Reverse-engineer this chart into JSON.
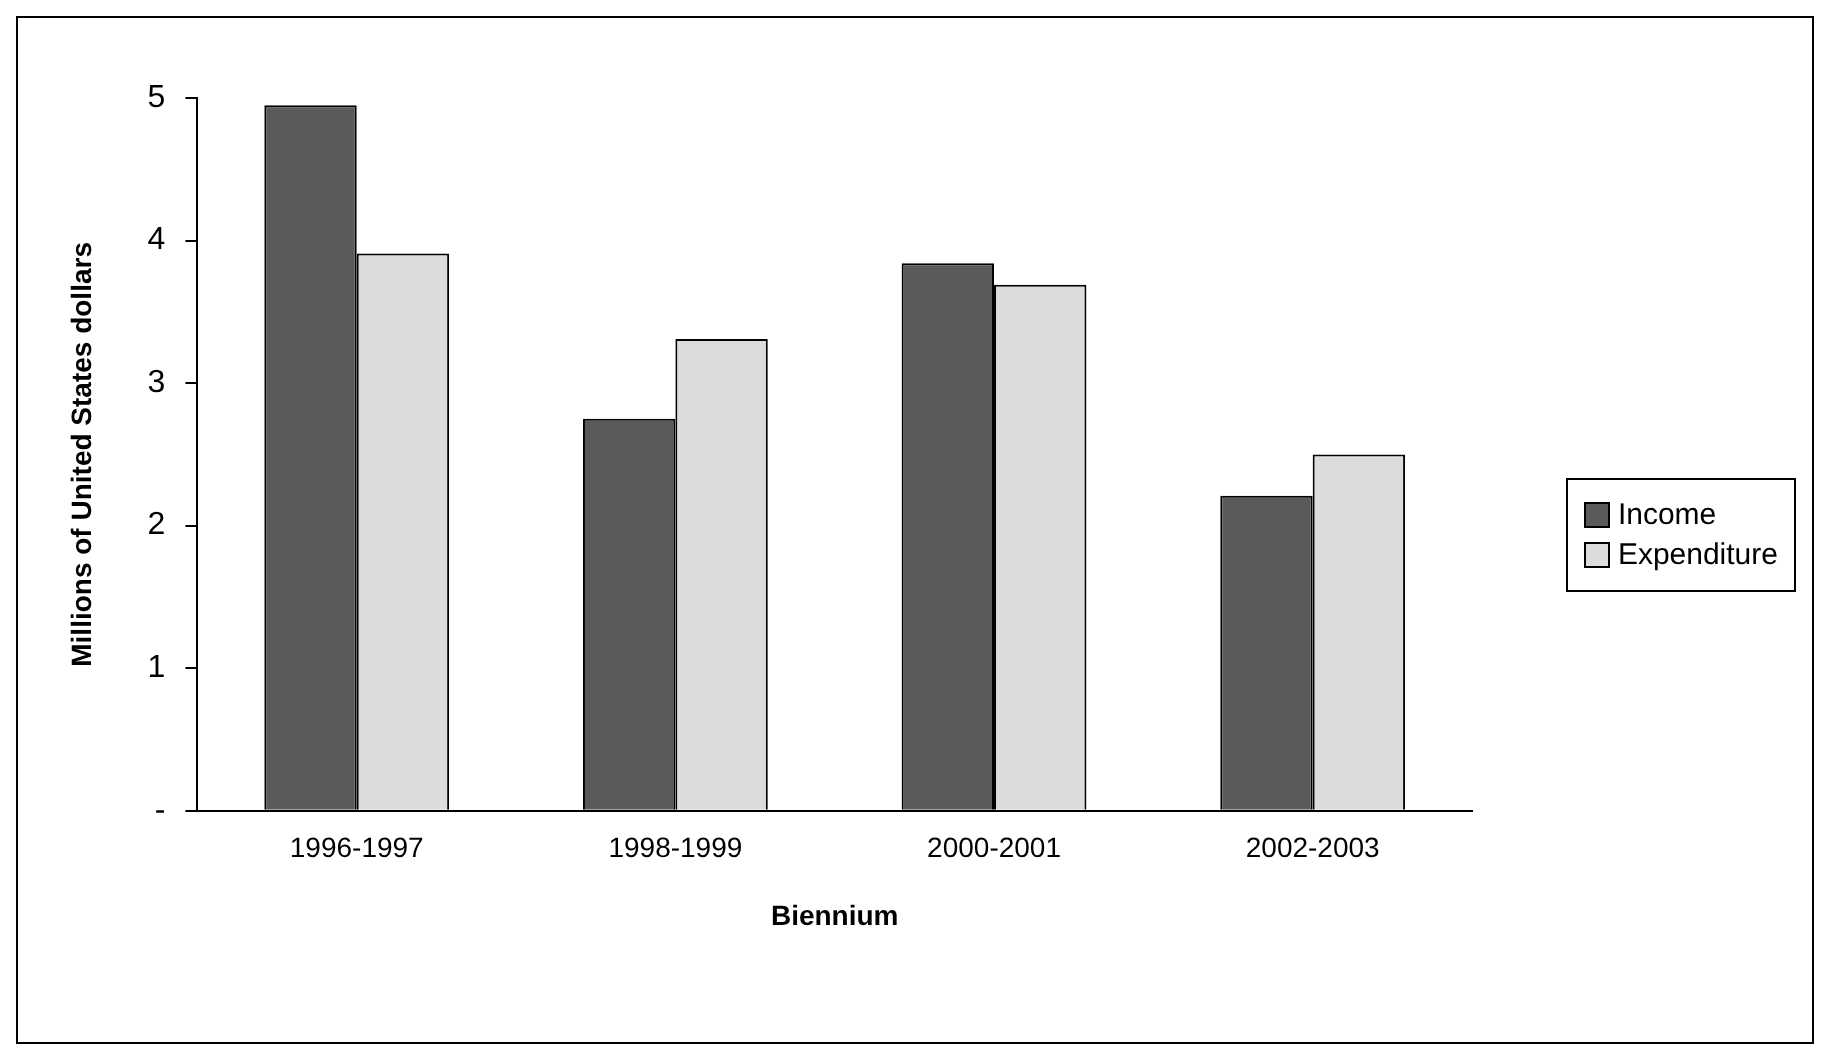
{
  "chart_data": {
    "type": "bar",
    "xlabel": "Biennium",
    "ylabel": "Millions of United States dollars",
    "categories": [
      "1996-1997",
      "1998-1999",
      "2000-2001",
      "2002-2003"
    ],
    "series": [
      {
        "name": "Income",
        "color": "#5a5a5a",
        "values": [
          4.95,
          2.75,
          3.84,
          2.21
        ]
      },
      {
        "name": "Expenditure",
        "color": "#dcdcdc",
        "values": [
          3.91,
          3.31,
          3.69,
          2.5
        ]
      }
    ],
    "ylim": [
      0,
      5
    ],
    "yticks": [
      {
        "value": 0,
        "label": "-"
      },
      1,
      2,
      3,
      4,
      5
    ],
    "grid": false,
    "legend": "right"
  }
}
